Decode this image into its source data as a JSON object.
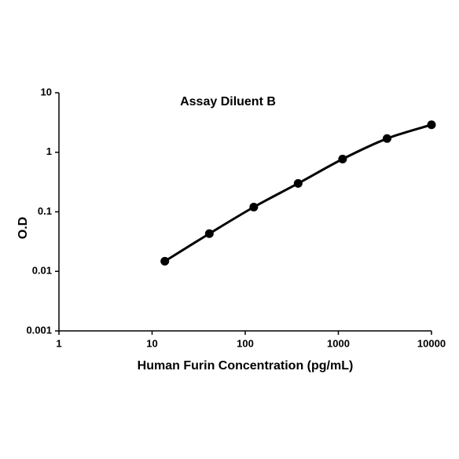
{
  "chart_data": {
    "type": "line",
    "title": "Assay Diluent B",
    "x_label": "Human Furin Concentration (pg/mL)",
    "y_label": "O.D",
    "x": [
      13.7,
      41.2,
      123.5,
      370,
      1111,
      3333,
      10000
    ],
    "values": [
      0.0148,
      0.043,
      0.12,
      0.3,
      0.77,
      1.7,
      2.9
    ],
    "color": "#000000",
    "xscale": "log",
    "yscale": "log",
    "xlim": [
      1,
      10000
    ],
    "ylim": [
      0.001,
      10
    ],
    "xticks": [
      1,
      10,
      100,
      1000,
      10000
    ],
    "yticks": [
      0.001,
      0.01,
      0.1,
      1,
      10
    ],
    "grid": false
  }
}
